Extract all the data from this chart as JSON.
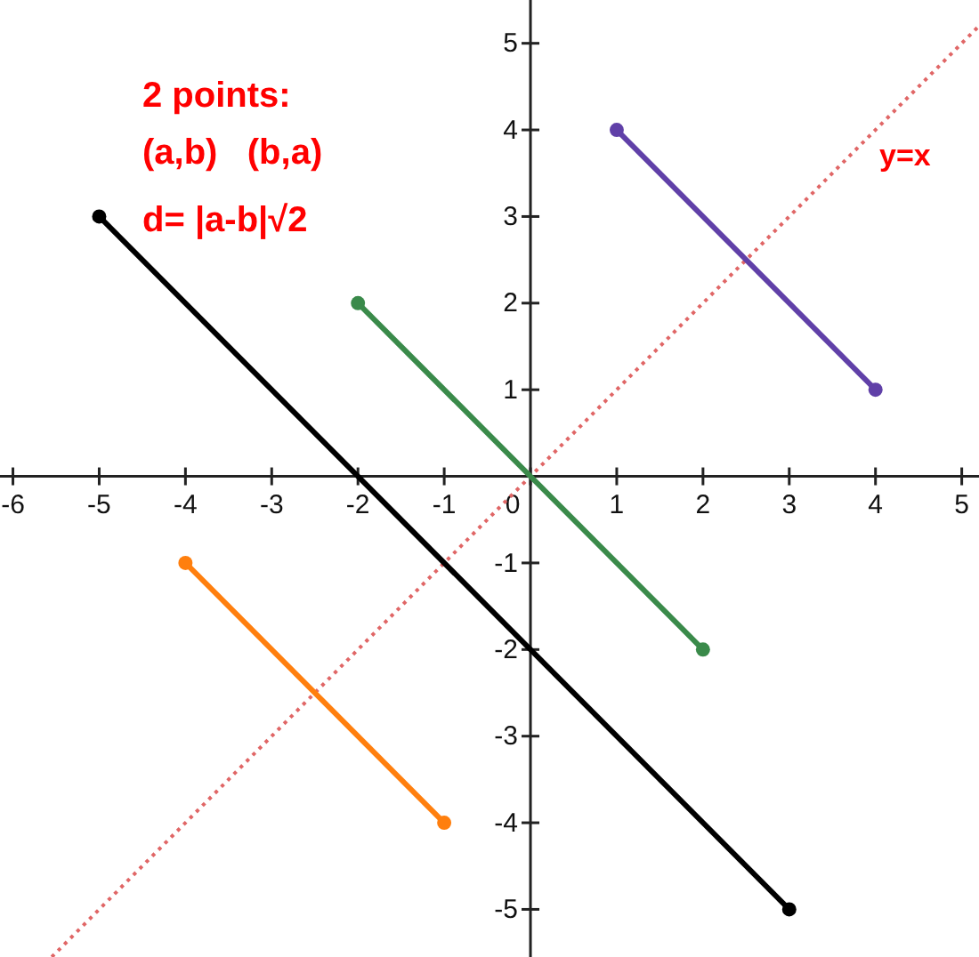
{
  "chart_data": {
    "type": "line",
    "xlim": [
      -6.15,
      5.2
    ],
    "ylim": [
      -5.55,
      5.5
    ],
    "xticks": [
      -6,
      -5,
      -4,
      -3,
      -2,
      -1,
      0,
      1,
      2,
      3,
      4,
      5
    ],
    "yticks": [
      -5,
      -4,
      -3,
      -2,
      -1,
      {
        "value": 0,
        "label": null
      },
      1,
      2,
      3,
      4,
      5
    ],
    "grid": false,
    "marker": "circle",
    "line_style": "solid",
    "series": [
      {
        "color": "#e06666",
        "x": [
          -5.55,
          5.2
        ],
        "values": [
          -5.55,
          5.2
        ],
        "line_style": "dotted",
        "marker": "none"
      },
      {
        "color": "#000000",
        "x": [
          -5,
          3
        ],
        "values": [
          3,
          -5
        ]
      },
      {
        "color": "#3a8a4a",
        "x": [
          -2,
          2
        ],
        "values": [
          2,
          -2
        ]
      },
      {
        "color": "#6040a8",
        "x": [
          1,
          4
        ],
        "values": [
          4,
          1
        ]
      },
      {
        "color": "#ff7f0e",
        "x": [
          -4,
          -1
        ],
        "values": [
          -1,
          -4
        ]
      }
    ],
    "annotations": [
      "2 points:",
      "(a,b)   (b,a)",
      "d= |a-b|√2",
      "y=x"
    ]
  }
}
